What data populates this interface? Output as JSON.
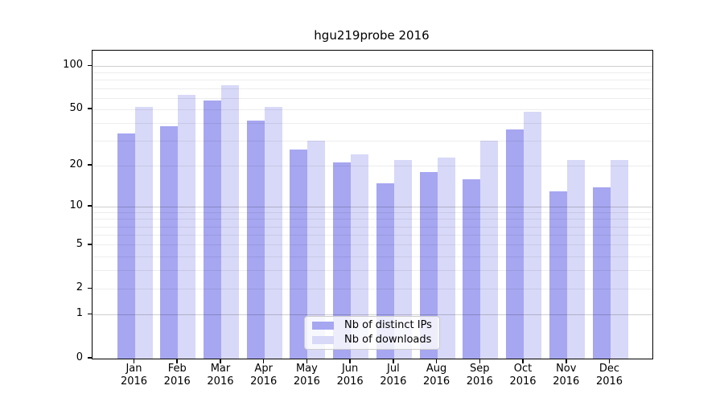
{
  "chart_data": {
    "type": "bar",
    "title": "hgu219probe 2016",
    "categories": [
      "Jan",
      "Feb",
      "Mar",
      "Apr",
      "May",
      "Jun",
      "Jul",
      "Aug",
      "Sep",
      "Oct",
      "Nov",
      "Dec"
    ],
    "year": "2016",
    "series": [
      {
        "name": "Nb of distinct IPs",
        "color": "#a6a6f1",
        "values": [
          34,
          38,
          58,
          42,
          26,
          21,
          15,
          18,
          16,
          36,
          13,
          14
        ]
      },
      {
        "name": "Nb of downloads",
        "color": "#d8d8f8",
        "values": [
          52,
          63,
          74,
          52,
          30,
          24,
          22,
          23,
          30,
          48,
          22,
          22
        ]
      }
    ],
    "y_axis": {
      "scale": "log1p",
      "tick_labels": [
        0,
        1,
        2,
        5,
        10,
        20,
        50,
        100
      ],
      "major_gridlines": [
        1,
        10,
        100
      ],
      "minor_gridlines": [
        2,
        3,
        4,
        5,
        6,
        7,
        8,
        9,
        20,
        30,
        40,
        50,
        60,
        70,
        80,
        90
      ],
      "range": [
        0,
        128
      ]
    },
    "legend": {
      "position": "lower-center"
    },
    "grid": true
  }
}
